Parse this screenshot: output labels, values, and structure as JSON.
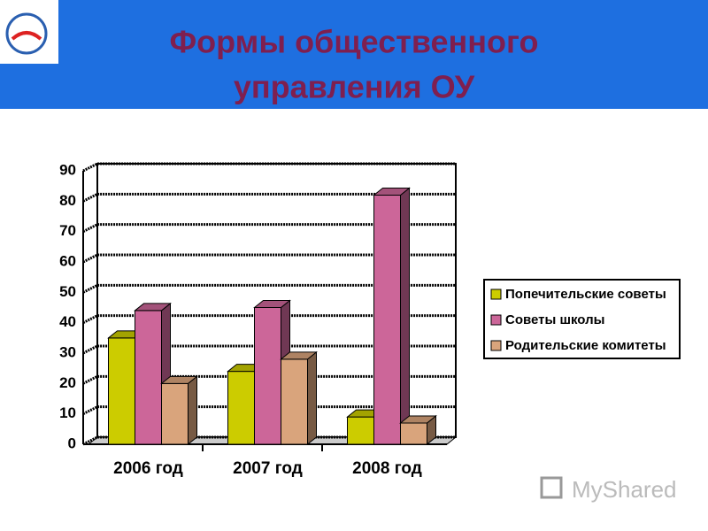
{
  "title_lines": [
    "Формы общественного",
    "управления ОУ"
  ],
  "watermark": "MyShared",
  "chart_data": {
    "type": "bar3d",
    "categories": [
      "2006 год",
      "2007 год",
      "2008 год"
    ],
    "series": [
      {
        "name": "Попечительские советы",
        "color": "#cccc00",
        "values": [
          35,
          24,
          9
        ]
      },
      {
        "name": "Советы школы",
        "color": "#cc6699",
        "values": [
          44,
          45,
          82
        ]
      },
      {
        "name": "Родительские комитеты",
        "color": "#d9a47c",
        "values": [
          20,
          28,
          7
        ]
      }
    ],
    "ylim": [
      0,
      90
    ],
    "yticks": [
      0,
      10,
      20,
      30,
      40,
      50,
      60,
      70,
      80,
      90
    ],
    "grid": true,
    "legend": "right"
  }
}
